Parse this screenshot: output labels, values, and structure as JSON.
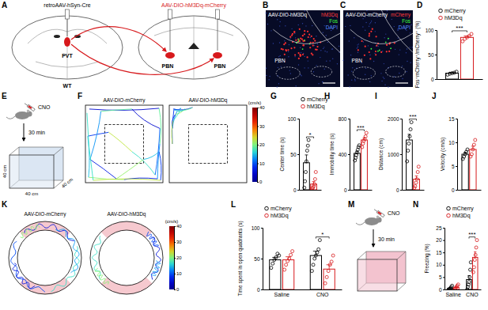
{
  "chart_data": [
    {
      "type": "bar",
      "panel_label": "D",
      "y_label": "Fos⁺mCherry⁺/mCherry⁺ (%)",
      "categories": [
        null
      ],
      "ylim": [
        0,
        100
      ],
      "yticks": [
        0,
        50,
        100
      ],
      "legend": "top-left",
      "series": [
        {
          "name": "mCherry",
          "color": "#000000",
          "values": [
            12
          ],
          "errors": [
            1.5
          ],
          "points": [
            [
              9,
              11,
              12,
              13,
              15
            ]
          ]
        },
        {
          "name": "hM3Dq",
          "color": "#d7191c",
          "values": [
            85
          ],
          "errors": [
            3
          ],
          "points": [
            [
              77,
              82,
              85,
              88,
              92
            ]
          ]
        }
      ],
      "annotations": [
        {
          "text": "***",
          "category": 0
        }
      ]
    },
    {
      "type": "bar",
      "panel_label": "G",
      "y_label": "Center time (s)",
      "categories": [
        null
      ],
      "ylim": [
        0,
        100
      ],
      "yticks": [
        0,
        50,
        100
      ],
      "legend": "top-left",
      "series": [
        {
          "name": "mCherry",
          "color": "#000000",
          "values": [
            38
          ],
          "errors": [
            11
          ],
          "points": [
            [
              3,
              12,
              25,
              40,
              55,
              62,
              70
            ]
          ]
        },
        {
          "name": "hM3Dq",
          "color": "#d7191c",
          "values": [
            8
          ],
          "errors": [
            3.5
          ],
          "points": [
            [
              0,
              2,
              3,
              5,
              8,
              15,
              25
            ]
          ]
        }
      ],
      "annotations": [
        {
          "text": "*",
          "category": 0
        }
      ]
    },
    {
      "type": "bar",
      "panel_label": "H",
      "y_label": "Immobility time (s)",
      "categories": [
        null
      ],
      "ylim": [
        0,
        800
      ],
      "yticks": [
        0,
        400,
        800
      ],
      "series": [
        {
          "color": "#000000",
          "values": [
            410
          ],
          "errors": [
            25
          ],
          "points": [
            [
              330,
              360,
              390,
              420,
              450,
              480,
              500
            ]
          ]
        },
        {
          "color": "#d7191c",
          "values": [
            560
          ],
          "errors": [
            25
          ],
          "points": [
            [
              480,
              520,
              550,
              570,
              600,
              640
            ]
          ]
        }
      ],
      "annotations": [
        {
          "text": "***",
          "category": 0
        }
      ]
    },
    {
      "type": "bar",
      "panel_label": "I",
      "y_label": "Distance (cm)",
      "categories": [
        null
      ],
      "ylim": [
        0,
        2000
      ],
      "yticks": [
        0,
        1000,
        2000
      ],
      "series": [
        {
          "color": "#000000",
          "values": [
            1400
          ],
          "errors": [
            160
          ],
          "points": [
            [
              800,
              1100,
              1300,
              1500,
              1700,
              1900
            ]
          ]
        },
        {
          "color": "#d7191c",
          "values": [
            300
          ],
          "errors": [
            90
          ],
          "points": [
            [
              50,
              100,
              200,
              300,
              500,
              650
            ]
          ]
        }
      ],
      "annotations": [
        {
          "text": "***",
          "category": 0
        }
      ]
    },
    {
      "type": "bar",
      "panel_label": "J",
      "y_label": "Velocity (cm/s)",
      "categories": [
        null
      ],
      "ylim": [
        0,
        15
      ],
      "yticks": [
        0,
        5,
        10,
        15
      ],
      "series": [
        {
          "color": "#000000",
          "values": [
            7.5
          ],
          "errors": [
            0.4
          ],
          "points": [
            [
              6.5,
              7,
              7.5,
              8,
              8.5
            ]
          ]
        },
        {
          "color": "#d7191c",
          "values": [
            8.5
          ],
          "errors": [
            0.7
          ],
          "points": [
            [
              7,
              7.5,
              8.5,
              9.5,
              10.5
            ]
          ]
        }
      ]
    },
    {
      "type": "bar",
      "panel_label": "L",
      "y_label": "Time spent in open quadrants (s)",
      "categories": [
        "Saline",
        "CNO"
      ],
      "ylim": [
        0,
        100
      ],
      "yticks": [
        0,
        50,
        100
      ],
      "legend": "top-left",
      "series": [
        {
          "name": "mCherry",
          "color": "#000000",
          "values": [
            48,
            55
          ],
          "errors": [
            4,
            7
          ],
          "points": [
            [
              35,
              42,
              48,
              52,
              58,
              55
            ],
            [
              30,
              40,
              50,
              55,
              60,
              65,
              80
            ]
          ]
        },
        {
          "name": "hM3Dq",
          "color": "#d7191c",
          "values": [
            48,
            33
          ],
          "errors": [
            5,
            7
          ],
          "points": [
            [
              32,
              40,
              46,
              50,
              56,
              62
            ],
            [
              10,
              20,
              30,
              40,
              45,
              55
            ]
          ]
        }
      ],
      "annotations": [
        {
          "text": "*",
          "category": 1
        }
      ]
    },
    {
      "type": "bar",
      "panel_label": "N",
      "y_label": "Freezing (%)",
      "categories": [
        "Saline",
        "CNO"
      ],
      "ylim": [
        0,
        25
      ],
      "yticks": [
        0,
        5,
        10,
        15,
        20,
        25
      ],
      "legend": "top-left",
      "series": [
        {
          "name": "mCherry",
          "color": "#000000",
          "values": [
            0.5,
            4
          ],
          "errors": [
            0.3,
            1.6
          ],
          "points": [
            [
              0,
              0,
              0.5,
              1,
              1.5
            ],
            [
              0,
              1,
              2,
              3,
              5,
              8,
              11
            ]
          ]
        },
        {
          "name": "hM3Dq",
          "color": "#d7191c",
          "values": [
            0.8,
            13
          ],
          "errors": [
            0.4,
            2.2
          ],
          "points": [
            [
              0,
              0.5,
              1,
              1.5,
              2
            ],
            [
              7,
              9,
              12,
              14,
              17,
              20
            ]
          ]
        }
      ],
      "annotations": [
        {
          "text": "***",
          "category": 1
        }
      ]
    }
  ],
  "diagrams": {
    "A": {
      "label": "A",
      "left_virus": "retroAAV-hSyn-Cre",
      "right_virus": "AAV-DIO-hM3Dq-mCherry",
      "right_virus_color": "#d7191c",
      "source": "PVT",
      "targets": [
        "PBN",
        "PBN"
      ],
      "genotype": "WT"
    },
    "B": {
      "label": "B",
      "title": "AAV-DIO-hM3Dq",
      "region": "PBN",
      "channels": [
        {
          "text": "hM3Dq",
          "color": "#ff3b3b"
        },
        {
          "text": "Fos",
          "color": "#3dff3d"
        },
        {
          "text": "DAPI",
          "color": "#5a8cff"
        }
      ]
    },
    "C": {
      "label": "C",
      "title": "AAV-DIO-mCherry",
      "region": "PBN",
      "channels": [
        {
          "text": "mCherry",
          "color": "#ff3b3b"
        },
        {
          "text": "Fos",
          "color": "#3dff3d"
        },
        {
          "text": "DAPI",
          "color": "#5a8cff"
        }
      ]
    },
    "E": {
      "label": "E",
      "drug": "CNO",
      "wait": "30 min",
      "sizes": [
        "40 cm",
        "40 cm",
        "40 cm"
      ]
    },
    "F": {
      "label": "F",
      "titles": [
        "AAV-DIO-mCherry",
        "AAV-DIO-hM3Dq"
      ],
      "colorbar": {
        "label": "(cm/s)",
        "range": [
          0,
          40
        ],
        "ticks": [
          0,
          10,
          20,
          30,
          40
        ]
      }
    },
    "K": {
      "label": "K",
      "titles": [
        "AAV-DIO-mCherry",
        "AAV-DIO-hM3Dq"
      ],
      "colorbar": {
        "label": "(cm/s)",
        "range": [
          0,
          40
        ],
        "ticks": [
          0,
          10,
          20,
          30,
          40
        ]
      }
    },
    "M": {
      "label": "M",
      "drug": "CNO",
      "wait": "30 min"
    }
  }
}
